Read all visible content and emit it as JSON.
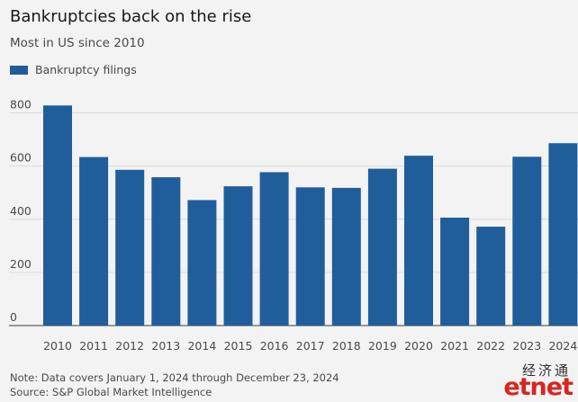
{
  "header": {
    "title": "Bankruptcies back on the rise",
    "subtitle": "Most in US since 2010"
  },
  "footer": {
    "note": "Note: Data covers January 1, 2024 through December 23, 2024",
    "source": "Source: S&P Global Market Intelligence"
  },
  "watermark": {
    "chinese": "经济通",
    "logo": "etnet"
  },
  "colors": {
    "bar": "#205d9b",
    "grid": "#e0dbd6",
    "background": "#f3f3f3"
  },
  "chart_data": {
    "type": "bar",
    "categories": [
      "2010",
      "2011",
      "2012",
      "2013",
      "2014",
      "2015",
      "2016",
      "2017",
      "2018",
      "2019",
      "2020",
      "2021",
      "2022",
      "2023",
      "2024"
    ],
    "series": [
      {
        "name": "Bankruptcy filings",
        "values": [
          828,
          634,
          586,
          558,
          472,
          524,
          577,
          520,
          518,
          590,
          639,
          406,
          372,
          635,
          686
        ]
      }
    ],
    "yticks": [
      0,
      200,
      400,
      600,
      800
    ],
    "ylim": [
      0,
      900
    ],
    "grid": true,
    "legend": "top-left"
  }
}
